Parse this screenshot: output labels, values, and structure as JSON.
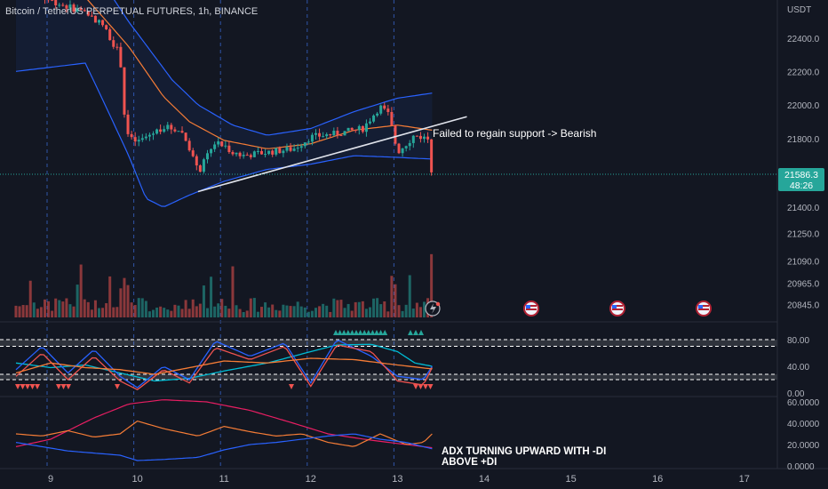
{
  "header": {
    "title": "Bitcoin / TetherUS PERPETUAL FUTURES, 1h, BINANCE",
    "currency": "USDT"
  },
  "price_badge": {
    "price": "21586.3",
    "countdown": "48:26"
  },
  "annotations": {
    "main": "Failed to regain support -> Bearish",
    "adx_line1": "ADX TURNING UPWARD WITH -DI",
    "adx_line2": "ABOVE +DI"
  },
  "colors": {
    "background": "#131722",
    "up": "#26a69a",
    "down": "#ef5350",
    "bollinger": "#2962ff",
    "ema": "#f57c36",
    "grid_vertical": "#2f54a8"
  },
  "chart_data": [
    {
      "type": "candlestick",
      "title": "Bitcoin / TetherUS PERPETUAL FUTURES, 1h, BINANCE",
      "x_ticks": [
        "9",
        "10",
        "11",
        "12",
        "13",
        "14",
        "15",
        "16",
        "17"
      ],
      "y_ticks": [
        "22400.0",
        "22200.0",
        "22000.0",
        "21800.0",
        "21586.3",
        "21400.0",
        "21250.0",
        "21090.0",
        "20965.0",
        "20845.0"
      ],
      "y_scale": "logarithmic",
      "last_price": 21586.3,
      "trendline": {
        "from": [
          10.7,
          21490
        ],
        "to": [
          13.8,
          21930
        ]
      },
      "close_path": [
        [
          8.6,
          22800
        ],
        [
          8.9,
          22650
        ],
        [
          9.15,
          22600
        ],
        [
          9.4,
          22560
        ],
        [
          9.6,
          22480
        ],
        [
          9.8,
          22300
        ],
        [
          9.85,
          21950
        ],
        [
          9.9,
          21800
        ],
        [
          10.0,
          21780
        ],
        [
          10.1,
          21810
        ],
        [
          10.3,
          21870
        ],
        [
          10.5,
          21850
        ],
        [
          10.6,
          21750
        ],
        [
          10.7,
          21600
        ],
        [
          10.9,
          21780
        ],
        [
          11.2,
          21700
        ],
        [
          11.5,
          21720
        ],
        [
          11.8,
          21740
        ],
        [
          12.0,
          21810
        ],
        [
          12.3,
          21830
        ],
        [
          12.6,
          21860
        ],
        [
          12.8,
          21990
        ],
        [
          12.9,
          21940
        ],
        [
          13.0,
          21720
        ],
        [
          13.2,
          21820
        ],
        [
          13.35,
          21800
        ],
        [
          13.4,
          21586.3
        ]
      ],
      "bollinger_upper": [
        [
          8.6,
          22900
        ],
        [
          9.4,
          22900
        ],
        [
          9.9,
          22500
        ],
        [
          10.4,
          22150
        ],
        [
          10.7,
          22000
        ],
        [
          11.1,
          21880
        ],
        [
          11.5,
          21820
        ],
        [
          12.0,
          21860
        ],
        [
          12.5,
          21960
        ],
        [
          13.0,
          22040
        ],
        [
          13.4,
          22070
        ]
      ],
      "bollinger_lower": [
        [
          8.6,
          22200
        ],
        [
          9.4,
          22250
        ],
        [
          9.9,
          21700
        ],
        [
          10.1,
          21450
        ],
        [
          10.3,
          21400
        ],
        [
          10.6,
          21470
        ],
        [
          11.0,
          21550
        ],
        [
          11.5,
          21620
        ],
        [
          12.0,
          21650
        ],
        [
          12.5,
          21700
        ],
        [
          13.0,
          21690
        ],
        [
          13.4,
          21680
        ]
      ],
      "ema": [
        [
          8.6,
          22750
        ],
        [
          9.4,
          22650
        ],
        [
          9.9,
          22350
        ],
        [
          10.3,
          22050
        ],
        [
          10.6,
          21900
        ],
        [
          11.0,
          21790
        ],
        [
          11.5,
          21740
        ],
        [
          12.0,
          21770
        ],
        [
          12.5,
          21850
        ],
        [
          13.0,
          21880
        ],
        [
          13.4,
          21850
        ]
      ]
    },
    {
      "type": "bar",
      "title": "",
      "series": [
        {
          "name": "",
          "values": []
        }
      ],
      "note_values": "volume bars per hour"
    },
    {
      "type": "line",
      "title": "",
      "y_ticks": [
        "80.00",
        "40.00",
        "0.00"
      ],
      "bands": [
        70,
        80,
        20,
        28
      ],
      "series": [
        {
          "name": "",
          "color": "#00bcd4",
          "points": [
            [
              8.6,
              45
            ],
            [
              9.0,
              38
            ],
            [
              9.4,
              42
            ],
            [
              9.8,
              30
            ],
            [
              10.2,
              18
            ],
            [
              10.6,
              22
            ],
            [
              11.0,
              33
            ],
            [
              11.5,
              45
            ],
            [
              12.0,
              62
            ],
            [
              12.3,
              72
            ],
            [
              12.7,
              73
            ],
            [
              13.0,
              62
            ],
            [
              13.2,
              45
            ],
            [
              13.4,
              40
            ]
          ]
        },
        {
          "name": "",
          "color": "#2962ff",
          "points": [
            [
              8.6,
              35
            ],
            [
              8.9,
              70
            ],
            [
              9.2,
              30
            ],
            [
              9.5,
              65
            ],
            [
              9.8,
              25
            ],
            [
              10.0,
              8
            ],
            [
              10.3,
              40
            ],
            [
              10.6,
              20
            ],
            [
              10.9,
              78
            ],
            [
              11.3,
              55
            ],
            [
              11.7,
              75
            ],
            [
              12.0,
              15
            ],
            [
              12.3,
              80
            ],
            [
              12.7,
              55
            ],
            [
              13.0,
              25
            ],
            [
              13.3,
              20
            ],
            [
              13.4,
              40
            ]
          ]
        },
        {
          "name": "",
          "color": "#ef5350",
          "points": [
            [
              8.6,
              25
            ],
            [
              8.9,
              60
            ],
            [
              9.2,
              20
            ],
            [
              9.5,
              55
            ],
            [
              9.8,
              18
            ],
            [
              10.0,
              5
            ],
            [
              10.3,
              35
            ],
            [
              10.6,
              15
            ],
            [
              10.9,
              68
            ],
            [
              11.3,
              50
            ],
            [
              11.7,
              70
            ],
            [
              12.0,
              10
            ],
            [
              12.3,
              72
            ],
            [
              12.7,
              62
            ],
            [
              13.0,
              18
            ],
            [
              13.3,
              12
            ],
            [
              13.4,
              38
            ]
          ]
        },
        {
          "name": "",
          "color": "#f57c36",
          "points": [
            [
              8.6,
              30
            ],
            [
              9.0,
              45
            ],
            [
              9.4,
              38
            ],
            [
              9.8,
              35
            ],
            [
              10.2,
              28
            ],
            [
              10.6,
              38
            ],
            [
              11.0,
              48
            ],
            [
              11.5,
              45
            ],
            [
              12.0,
              52
            ],
            [
              12.5,
              50
            ],
            [
              13.0,
              42
            ],
            [
              13.4,
              36
            ]
          ]
        }
      ]
    },
    {
      "type": "line",
      "title": "",
      "y_ticks": [
        "60.0000",
        "40.0000",
        "20.0000",
        "0.0000"
      ],
      "series": [
        {
          "name": "",
          "color": "#e91e63",
          "points": [
            [
              8.6,
              18
            ],
            [
              9.0,
              25
            ],
            [
              9.5,
              45
            ],
            [
              9.9,
              58
            ],
            [
              10.3,
              62
            ],
            [
              10.8,
              60
            ],
            [
              11.3,
              52
            ],
            [
              11.8,
              40
            ],
            [
              12.2,
              30
            ],
            [
              12.7,
              24
            ],
            [
              13.1,
              20
            ],
            [
              13.4,
              17
            ]
          ]
        },
        {
          "name": "",
          "color": "#f57c36",
          "points": [
            [
              8.6,
              30
            ],
            [
              8.9,
              28
            ],
            [
              9.2,
              33
            ],
            [
              9.5,
              27
            ],
            [
              9.8,
              30
            ],
            [
              10.0,
              42
            ],
            [
              10.3,
              35
            ],
            [
              10.7,
              28
            ],
            [
              11.0,
              37
            ],
            [
              11.3,
              32
            ],
            [
              11.6,
              28
            ],
            [
              11.9,
              30
            ],
            [
              12.2,
              22
            ],
            [
              12.5,
              18
            ],
            [
              12.8,
              30
            ],
            [
              13.1,
              20
            ],
            [
              13.3,
              22
            ],
            [
              13.4,
              30
            ]
          ]
        },
        {
          "name": "",
          "color": "#2962ff",
          "points": [
            [
              8.6,
              22
            ],
            [
              8.9,
              18
            ],
            [
              9.2,
              14
            ],
            [
              9.5,
              12
            ],
            [
              9.8,
              10
            ],
            [
              10.0,
              5
            ],
            [
              10.3,
              6
            ],
            [
              10.7,
              8
            ],
            [
              11.0,
              15
            ],
            [
              11.3,
              20
            ],
            [
              11.6,
              22
            ],
            [
              11.9,
              25
            ],
            [
              12.2,
              28
            ],
            [
              12.5,
              30
            ],
            [
              12.8,
              25
            ],
            [
              13.1,
              22
            ],
            [
              13.3,
              18
            ],
            [
              13.4,
              16
            ]
          ]
        }
      ]
    }
  ]
}
